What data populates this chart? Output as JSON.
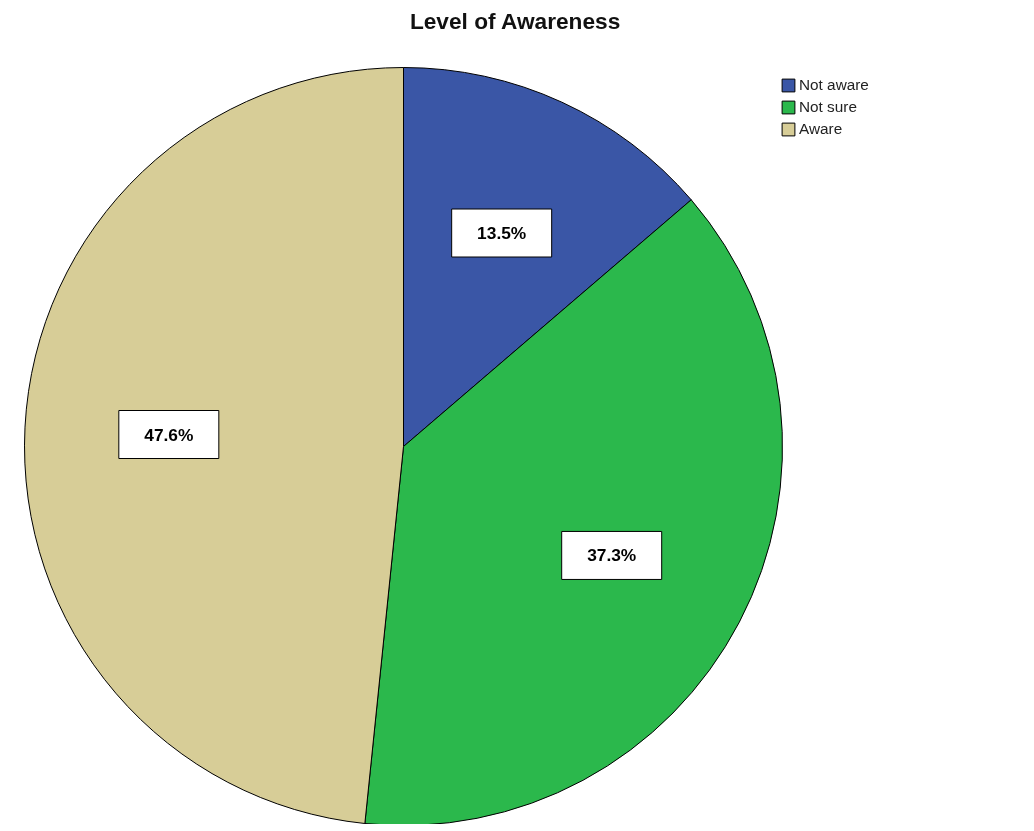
{
  "chart_data": {
    "type": "pie",
    "title": "Level of Awareness",
    "categories": [
      "Not aware",
      "Not sure",
      "Aware"
    ],
    "values": [
      13.5,
      37.3,
      47.6
    ],
    "colors": [
      "#3a56a6",
      "#2bb84c",
      "#d7cd97"
    ],
    "value_labels": [
      "13.5%",
      "37.3%",
      "47.6%"
    ],
    "legend": "top right"
  }
}
